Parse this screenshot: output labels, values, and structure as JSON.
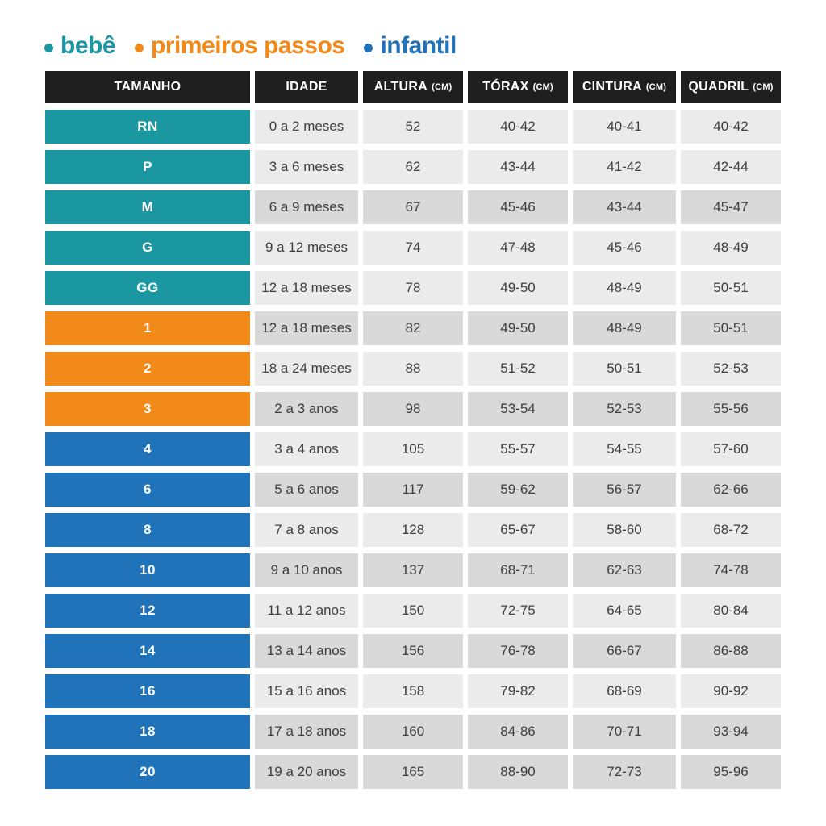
{
  "colors": {
    "bebe": "#1b97a2",
    "primeiros-passos": "#f18a18",
    "infantil": "#2173b9",
    "header_bg": "#1f1f1f",
    "row_light": "#ebebeb",
    "row_dark": "#d9d9d9",
    "cell_text": "#3d3d3d"
  },
  "chart_data": {
    "type": "table",
    "title": "",
    "legend": [
      {
        "label": "bebê",
        "group": "bebe"
      },
      {
        "label": "primeiros passos",
        "group": "primeiros-passos"
      },
      {
        "label": "infantil",
        "group": "infantil"
      }
    ],
    "columns": [
      {
        "key": "size",
        "label": "TAMANHO",
        "unit": ""
      },
      {
        "key": "idade",
        "label": "IDADE",
        "unit": ""
      },
      {
        "key": "altura",
        "label": "ALTURA",
        "unit": "(CM)"
      },
      {
        "key": "torax",
        "label": "TÓRAX",
        "unit": "(CM)"
      },
      {
        "key": "cintura",
        "label": "CINTURA",
        "unit": "(CM)"
      },
      {
        "key": "quadril",
        "label": "QUADRIL",
        "unit": "(CM)"
      }
    ],
    "rows": [
      {
        "size": "RN",
        "group": "bebe",
        "shade": "light",
        "idade": "0 a 2 meses",
        "altura": "52",
        "torax": "40-42",
        "cintura": "40-41",
        "quadril": "40-42"
      },
      {
        "size": "P",
        "group": "bebe",
        "shade": "light",
        "idade": "3 a 6 meses",
        "altura": "62",
        "torax": "43-44",
        "cintura": "41-42",
        "quadril": "42-44"
      },
      {
        "size": "M",
        "group": "bebe",
        "shade": "dark",
        "idade": "6 a 9 meses",
        "altura": "67",
        "torax": "45-46",
        "cintura": "43-44",
        "quadril": "45-47"
      },
      {
        "size": "G",
        "group": "bebe",
        "shade": "light",
        "idade": "9 a 12 meses",
        "altura": "74",
        "torax": "47-48",
        "cintura": "45-46",
        "quadril": "48-49"
      },
      {
        "size": "GG",
        "group": "bebe",
        "shade": "light",
        "idade": "12 a 18 meses",
        "altura": "78",
        "torax": "49-50",
        "cintura": "48-49",
        "quadril": "50-51"
      },
      {
        "size": "1",
        "group": "primeiros-passos",
        "shade": "dark",
        "idade": "12 a 18 meses",
        "altura": "82",
        "torax": "49-50",
        "cintura": "48-49",
        "quadril": "50-51"
      },
      {
        "size": "2",
        "group": "primeiros-passos",
        "shade": "light",
        "idade": "18 a 24 meses",
        "altura": "88",
        "torax": "51-52",
        "cintura": "50-51",
        "quadril": "52-53"
      },
      {
        "size": "3",
        "group": "primeiros-passos",
        "shade": "dark",
        "idade": "2 a 3 anos",
        "altura": "98",
        "torax": "53-54",
        "cintura": "52-53",
        "quadril": "55-56"
      },
      {
        "size": "4",
        "group": "infantil",
        "shade": "light",
        "idade": "3 a 4 anos",
        "altura": "105",
        "torax": "55-57",
        "cintura": "54-55",
        "quadril": "57-60"
      },
      {
        "size": "6",
        "group": "infantil",
        "shade": "dark",
        "idade": "5 a 6 anos",
        "altura": "117",
        "torax": "59-62",
        "cintura": "56-57",
        "quadril": "62-66"
      },
      {
        "size": "8",
        "group": "infantil",
        "shade": "light",
        "idade": "7 a 8 anos",
        "altura": "128",
        "torax": "65-67",
        "cintura": "58-60",
        "quadril": "68-72"
      },
      {
        "size": "10",
        "group": "infantil",
        "shade": "dark",
        "idade": "9 a 10 anos",
        "altura": "137",
        "torax": "68-71",
        "cintura": "62-63",
        "quadril": "74-78"
      },
      {
        "size": "12",
        "group": "infantil",
        "shade": "light",
        "idade": "11 a 12 anos",
        "altura": "150",
        "torax": "72-75",
        "cintura": "64-65",
        "quadril": "80-84"
      },
      {
        "size": "14",
        "group": "infantil",
        "shade": "dark",
        "idade": "13 a 14 anos",
        "altura": "156",
        "torax": "76-78",
        "cintura": "66-67",
        "quadril": "86-88"
      },
      {
        "size": "16",
        "group": "infantil",
        "shade": "light",
        "idade": "15 a 16 anos",
        "altura": "158",
        "torax": "79-82",
        "cintura": "68-69",
        "quadril": "90-92"
      },
      {
        "size": "18",
        "group": "infantil",
        "shade": "dark",
        "idade": "17 a 18 anos",
        "altura": "160",
        "torax": "84-86",
        "cintura": "70-71",
        "quadril": "93-94"
      },
      {
        "size": "20",
        "group": "infantil",
        "shade": "dark",
        "idade": "19 a 20 anos",
        "altura": "165",
        "torax": "88-90",
        "cintura": "72-73",
        "quadril": "95-96"
      }
    ]
  }
}
